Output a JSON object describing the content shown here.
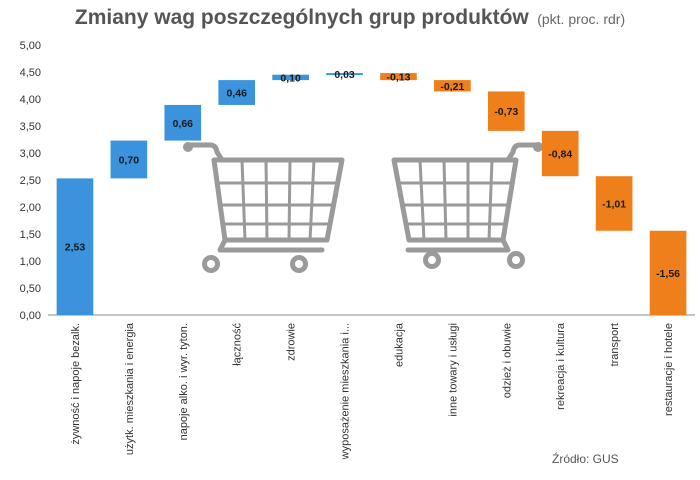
{
  "title": "Zmiany wag poszczególnych grup produktów",
  "subtitle": "(pkt. proc. rdr)",
  "source": "Źródło: GUS",
  "icons": [
    "shopping-cart-icon",
    "shopping-cart-icon"
  ],
  "colors": {
    "increase": "#3b93dd",
    "decrease": "#ef7f1a",
    "axis": "#888888",
    "text": "#333333"
  },
  "chart_data": {
    "type": "waterfall",
    "ylim": [
      0,
      5
    ],
    "ytick_step": 0.5,
    "ytick_labels": [
      "0,00",
      "0,50",
      "1,00",
      "1,50",
      "2,00",
      "2,50",
      "3,00",
      "3,50",
      "4,00",
      "4,50",
      "5,00"
    ],
    "grid": false,
    "categories": [
      "żywność i napoje bezalk.",
      "użytk. mieszkania i energia",
      "napoje alko. i wyr. tyton.",
      "łączność",
      "zdrowie",
      "wyposażenie mieszkania i...",
      "edukacja",
      "inne towary i usługi",
      "odzież i obuwie",
      "rekreacja i kultura",
      "transport",
      "restauracje i hotele"
    ],
    "values": [
      2.53,
      0.7,
      0.66,
      0.46,
      0.1,
      0.03,
      -0.13,
      -0.21,
      -0.73,
      -0.84,
      -1.01,
      -1.56
    ],
    "value_labels": [
      "2,53",
      "0,70",
      "0,66",
      "0,46",
      "0,10",
      "0,03",
      "-0,13",
      "-0,21",
      "-0,73",
      "-0,84",
      "-1,01",
      "-1,56"
    ]
  }
}
